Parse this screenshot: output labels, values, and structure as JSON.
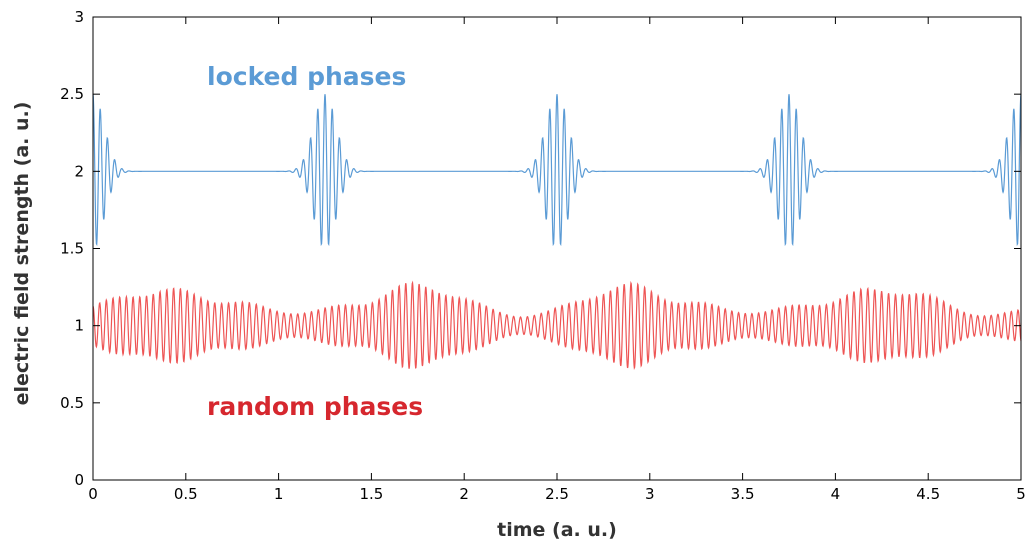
{
  "chart_data": {
    "type": "line",
    "title": "",
    "xlabel": "time (a. u.)",
    "ylabel": "electric field strength (a. u.)",
    "xlim": [
      0,
      5
    ],
    "ylim": [
      0,
      3
    ],
    "xticks": [
      "0",
      "0.5",
      "1",
      "1.5",
      "2",
      "2.5",
      "3",
      "3.5",
      "4",
      "4.5",
      "5"
    ],
    "yticks": [
      "0",
      "0.5",
      "1",
      "1.5",
      "2",
      "2.5",
      "3"
    ],
    "grid": false,
    "legend": "none",
    "annotations": [
      {
        "text": "locked phases",
        "color": "#5b9bd5"
      },
      {
        "text": "random phases",
        "color": "#d6272e"
      }
    ],
    "series": [
      {
        "color": "#5b9bd5",
        "description_values": {
          "baseline": 2.0,
          "pulse_centers": [
            0.0,
            1.25,
            2.5,
            3.75,
            5.0
          ],
          "pulse_peak_amplitude": 0.5,
          "min": 1.5,
          "max": 2.5
        }
      },
      {
        "color": "#ee5555",
        "description_values": {
          "baseline": 1.0,
          "envelope_peak_x": [
            0.45,
            1.7,
            2.95,
            4.2
          ],
          "approx_amplitude_range": [
            0.1,
            0.3
          ],
          "min": 0.7,
          "max": 1.3
        }
      }
    ]
  }
}
